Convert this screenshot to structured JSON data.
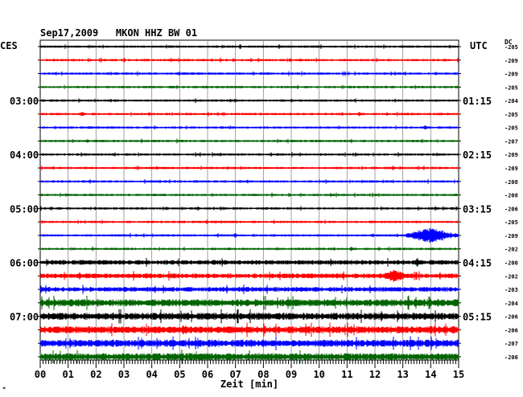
{
  "header": {
    "title": "Sep17,2009   MKON HHZ BW 01",
    "left_tz": "CES",
    "right_tz": "UTC",
    "dc_label": "DC"
  },
  "chart_data": {
    "type": "line",
    "description_kind": "helicorder",
    "xlabel": "Zeit [min]",
    "xlim": [
      0,
      15
    ],
    "x_tick_labels": [
      "00",
      "01",
      "02",
      "03",
      "04",
      "05",
      "06",
      "07",
      "08",
      "09",
      "10",
      "11",
      "12",
      "13",
      "14",
      "15"
    ],
    "trace_colors": [
      "#000000",
      "#ff0000",
      "#0000ff",
      "#006400"
    ],
    "left_hour_labels": [
      {
        "trace": 4,
        "label": "03:00"
      },
      {
        "trace": 8,
        "label": "04:00"
      },
      {
        "trace": 12,
        "label": "05:00"
      },
      {
        "trace": 16,
        "label": "06:00"
      },
      {
        "trace": 20,
        "label": "07:00"
      }
    ],
    "right_hour_labels": [
      {
        "trace": 4,
        "label": "01:15"
      },
      {
        "trace": 8,
        "label": "02:15"
      },
      {
        "trace": 12,
        "label": "03:15"
      },
      {
        "trace": 16,
        "label": "04:15"
      },
      {
        "trace": 20,
        "label": "05:15"
      }
    ],
    "dc_values": [
      "-205",
      "-209",
      "-209",
      "-205",
      "-204",
      "-205",
      "-205",
      "-207",
      "-209",
      "-209",
      "-208",
      "-208",
      "-206",
      "-205",
      "-209",
      "-202",
      "-200",
      "-202",
      "-203",
      "-204",
      "-206",
      "-206",
      "-207",
      "-206"
    ],
    "noise_levels": [
      1,
      1,
      1,
      1,
      1,
      1,
      1,
      1,
      1,
      1,
      1,
      1,
      1,
      1,
      1,
      1,
      2,
      2,
      2,
      3,
      3,
      3,
      3,
      3
    ],
    "events": [
      {
        "trace": 14,
        "start_min": 13.1,
        "end_min": 15.0,
        "peak_min": 13.95,
        "amplitude": 8
      },
      {
        "trace": 17,
        "start_min": 12.3,
        "end_min": 13.2,
        "peak_min": 12.7,
        "amplitude": 5
      },
      {
        "trace": 5,
        "start_min": 1.4,
        "end_min": 1.6,
        "peak_min": 1.5,
        "amplitude": 2
      },
      {
        "trace": 21,
        "start_min": 5.1,
        "end_min": 5.4,
        "peak_min": 5.2,
        "amplitude": 3
      }
    ]
  }
}
